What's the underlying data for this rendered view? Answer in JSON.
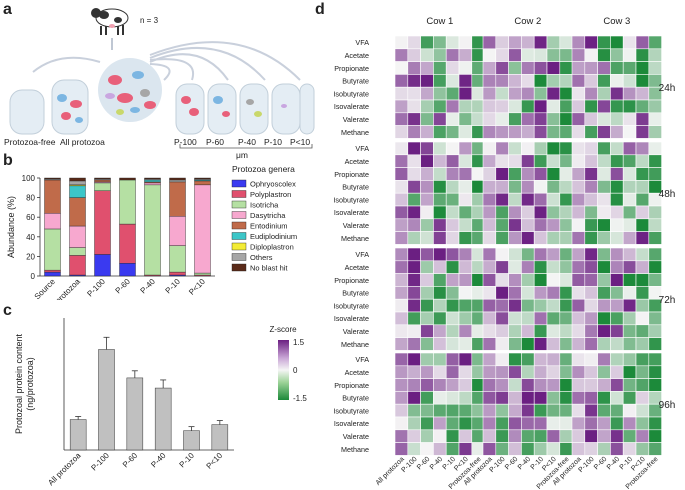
{
  "panel_labels": {
    "a": "a",
    "b": "b",
    "c": "c",
    "d": "d"
  },
  "panel_a": {
    "n_label": "n = 3",
    "tube_labels": [
      "Protozoa-free",
      "All protozoa",
      "P-100",
      "P-60",
      "P-40",
      "P-10",
      "P<10"
    ],
    "unit": "μm"
  },
  "chart_data": [
    {
      "type": "bar",
      "stacked": true,
      "title": "",
      "ylabel": "Abundance (%)",
      "ylim": [
        0,
        100
      ],
      "yticks": [
        "0",
        "20",
        "40",
        "60",
        "80",
        "100"
      ],
      "categories": [
        "Source",
        "All protozoa",
        "P-100",
        "P-60",
        "P-40",
        "P-10",
        "P<10"
      ],
      "legend_title": "Protozoa genera",
      "series": [
        {
          "name": "Ophryoscolex",
          "color": "#3a3af0",
          "values": [
            4,
            1,
            22,
            13,
            0,
            1,
            0
          ]
        },
        {
          "name": "Polyplastron",
          "color": "#e0506e",
          "values": [
            2,
            20,
            65,
            40,
            1,
            3,
            1
          ]
        },
        {
          "name": "Isotricha",
          "color": "#b5e0a3",
          "values": [
            42,
            8,
            8,
            45,
            92,
            27,
            2
          ]
        },
        {
          "name": "Dasytricha",
          "color": "#f7a8cf",
          "values": [
            16,
            22,
            1,
            0,
            2,
            30,
            90
          ]
        },
        {
          "name": "Entodinium",
          "color": "#c06b4a",
          "values": [
            34,
            29,
            2,
            0,
            1,
            35,
            4
          ]
        },
        {
          "name": "Eudiplodinium",
          "color": "#3cc6c8",
          "values": [
            0,
            12,
            0,
            0,
            2,
            0,
            1
          ]
        },
        {
          "name": "Diploplastron",
          "color": "#f3ec35",
          "values": [
            0,
            1,
            0,
            0,
            0,
            0,
            0
          ]
        },
        {
          "name": "Others",
          "color": "#a6a6a6",
          "values": [
            1,
            4,
            1,
            0,
            1,
            2,
            1
          ]
        },
        {
          "name": "No blast hit",
          "color": "#5a2a18",
          "values": [
            1,
            3,
            1,
            2,
            1,
            2,
            1
          ]
        }
      ]
    },
    {
      "type": "bar",
      "title": "",
      "ylabel": "Protozoal protein content",
      "ylabel2": "(ng/protozoa)",
      "ylim": [
        0,
        130
      ],
      "categories": [
        "All protozoa",
        "P-100",
        "P-60",
        "P-40",
        "P-10",
        "P<10"
      ],
      "values": [
        30,
        99,
        71,
        61,
        19,
        25
      ],
      "errors": [
        3,
        12,
        7,
        8,
        4,
        4
      ]
    },
    {
      "type": "heatmap",
      "title": "",
      "cows": [
        "Cow 1",
        "Cow 2",
        "Cow 3"
      ],
      "columns": [
        "All protozoa",
        "P-100",
        "P-60",
        "P-40",
        "P-10",
        "P<10",
        "Protozoa-free"
      ],
      "rows": [
        "VFA",
        "Acetate",
        "Propionate",
        "Butyrate",
        "Isobutyrate",
        "Isovalerate",
        "Valerate",
        "Methane"
      ],
      "timepoints": [
        "24h",
        "48h",
        "72h",
        "96h"
      ],
      "colorbar": {
        "label": "Z-score",
        "ticks": [
          "1.5",
          "0",
          "-1.5"
        ],
        "min": -1.5,
        "max": 1.5
      }
    }
  ]
}
